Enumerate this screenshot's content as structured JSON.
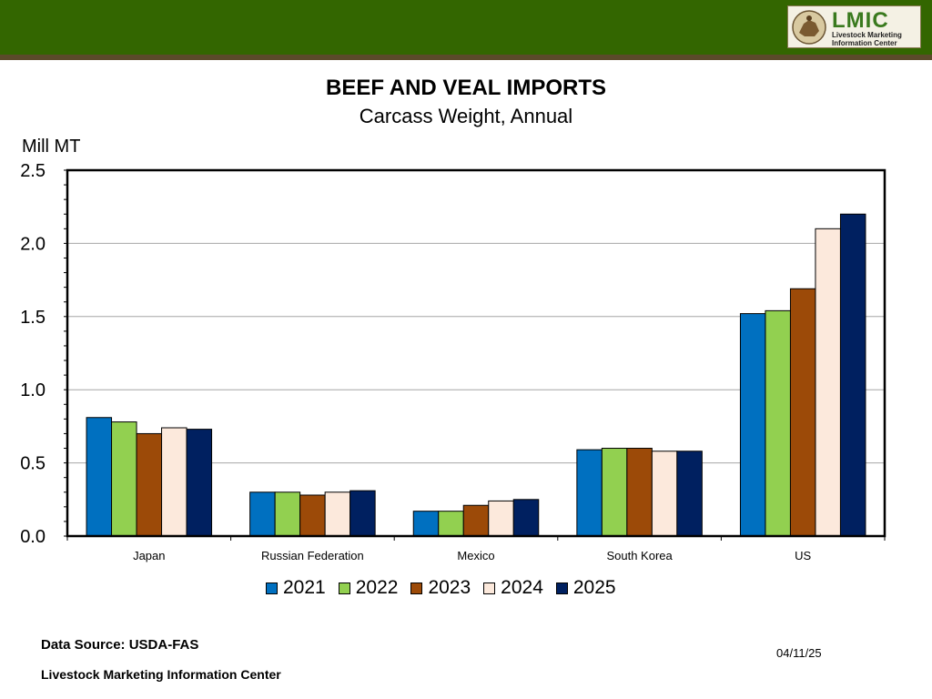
{
  "header": {
    "logo_text": "LMIC",
    "logo_subtitle": "Livestock Marketing Information Center"
  },
  "footer": {
    "source": "Data Source:  USDA-FAS",
    "organization": "Livestock Marketing Information Center",
    "date": "04/11/25"
  },
  "colors": {
    "header_bg": "#336600",
    "s2021": "#0070c0",
    "s2022": "#92d050",
    "s2023": "#9c4a08",
    "s2024": "#fce9dc",
    "s2025": "#002060"
  },
  "chart_data": {
    "type": "bar",
    "title": "BEEF AND VEAL IMPORTS",
    "subtitle": "Carcass Weight, Annual",
    "ylabel": "Mill MT",
    "xlabel": "",
    "ylim": [
      0,
      2.5
    ],
    "yticks": [
      "0.0",
      "0.5",
      "1.0",
      "1.5",
      "2.0",
      "2.5"
    ],
    "ytick_values": [
      0,
      0.5,
      1.0,
      1.5,
      2.0,
      2.5
    ],
    "grid": true,
    "legend_position": "bottom",
    "categories": [
      "Japan",
      "Russian Federation",
      "Mexico",
      "South Korea",
      "US"
    ],
    "series": [
      {
        "name": "2021",
        "color": "#0070c0",
        "values": [
          0.81,
          0.3,
          0.17,
          0.59,
          1.52
        ]
      },
      {
        "name": "2022",
        "color": "#92d050",
        "values": [
          0.78,
          0.3,
          0.17,
          0.6,
          1.54
        ]
      },
      {
        "name": "2023",
        "color": "#9c4a08",
        "values": [
          0.7,
          0.28,
          0.21,
          0.6,
          1.69
        ]
      },
      {
        "name": "2024",
        "color": "#fce9dc",
        "values": [
          0.74,
          0.3,
          0.24,
          0.58,
          2.1
        ]
      },
      {
        "name": "2025",
        "color": "#002060",
        "values": [
          0.73,
          0.31,
          0.25,
          0.58,
          2.2
        ]
      }
    ]
  }
}
